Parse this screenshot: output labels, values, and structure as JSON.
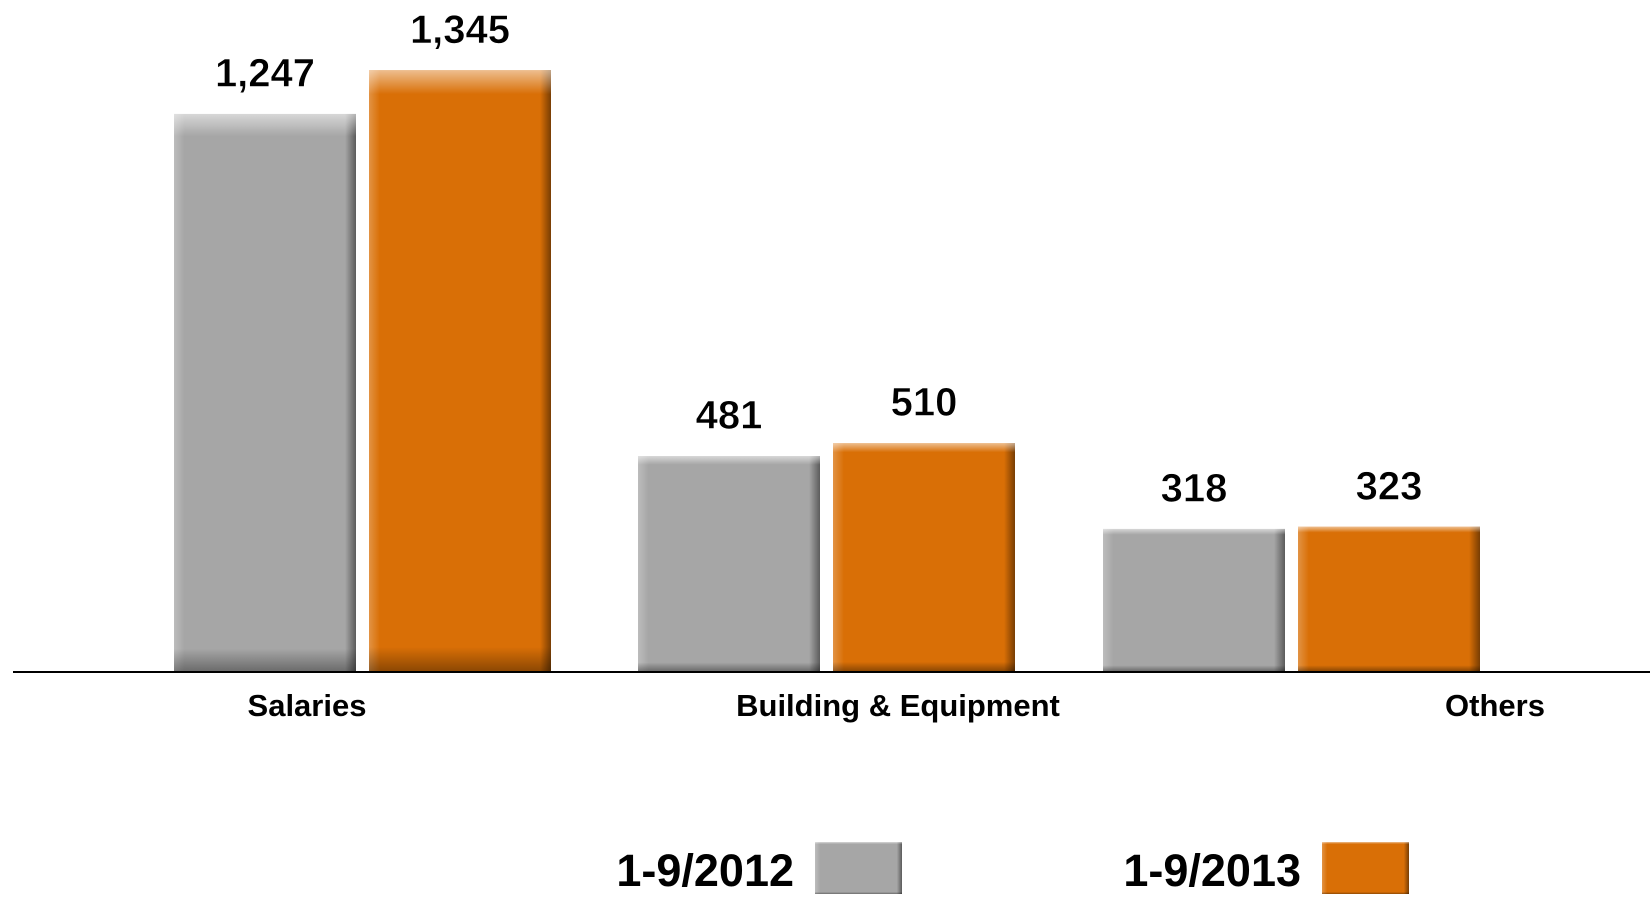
{
  "chart_data": {
    "type": "bar",
    "categories": [
      "Salaries",
      "Building & Equipment",
      "Others"
    ],
    "series": [
      {
        "name": "1-9/2012",
        "color": "#a6a6a6",
        "values": [
          1247,
          481,
          318
        ],
        "value_labels": [
          "1,247",
          "481",
          "318"
        ]
      },
      {
        "name": "1-9/2013",
        "color": "#d96f06",
        "values": [
          1345,
          510,
          323
        ],
        "value_labels": [
          "1,345",
          "510",
          "323"
        ]
      }
    ]
  }
}
